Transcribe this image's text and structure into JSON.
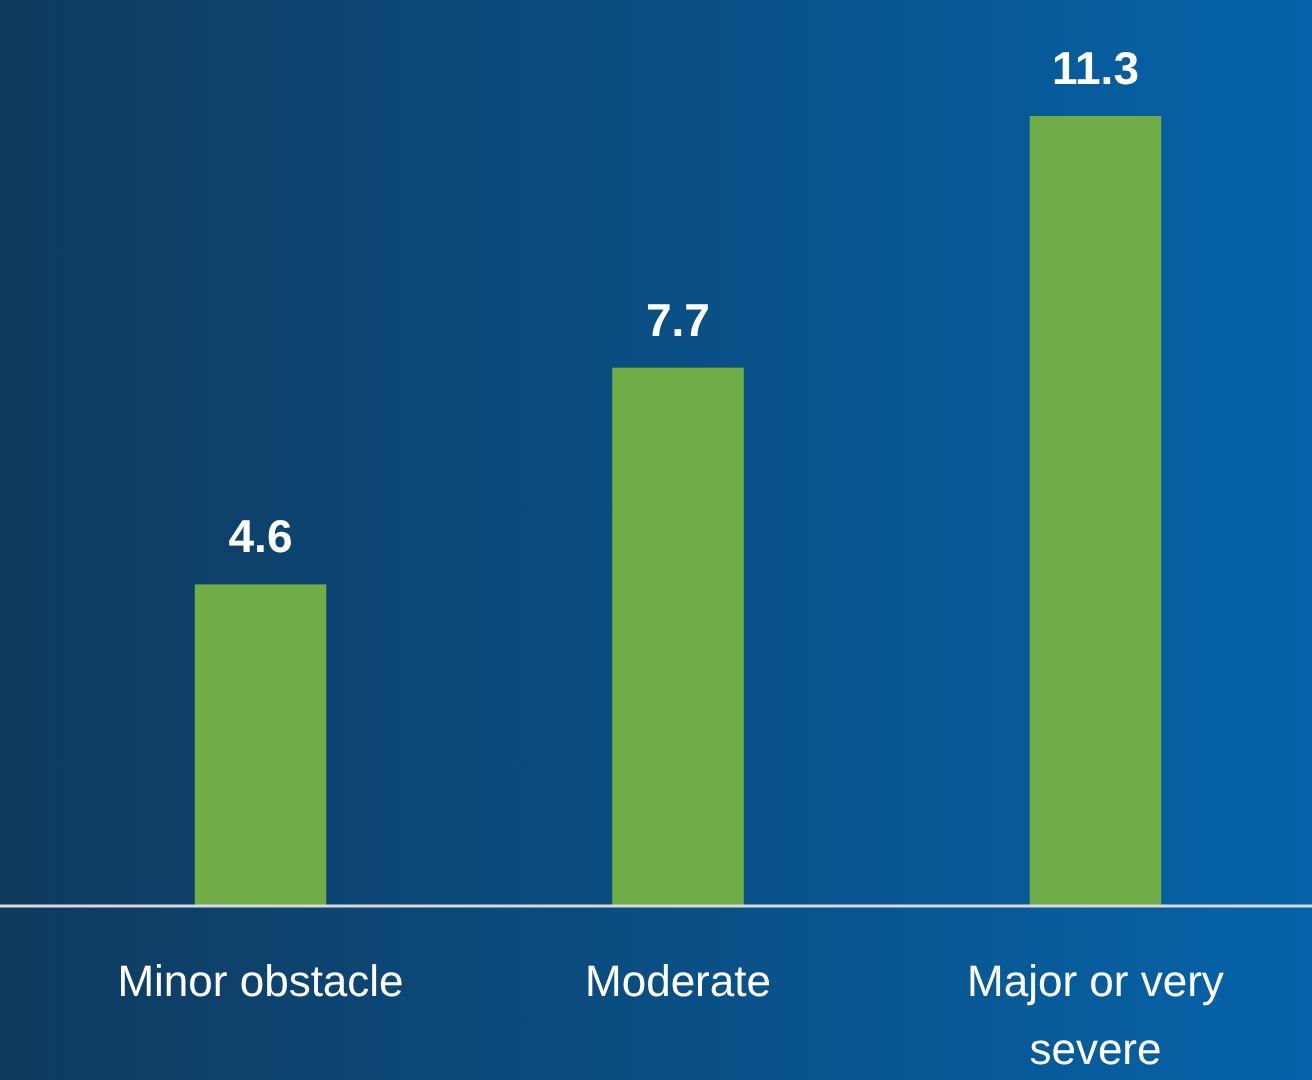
{
  "chart_data": {
    "type": "bar",
    "categories": [
      "Minor obstacle",
      "Moderate",
      "Major or very severe"
    ],
    "values": [
      4.6,
      7.7,
      11.3
    ],
    "color": "#70ad47",
    "data_labels": true
  }
}
